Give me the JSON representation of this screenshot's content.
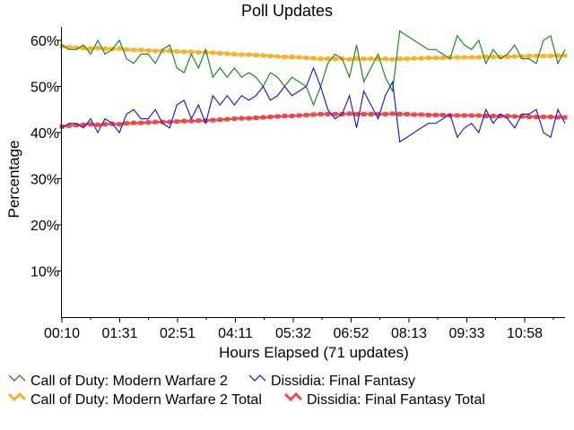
{
  "chart_data": {
    "type": "line",
    "title": "Poll Updates",
    "xlabel": "Hours Elapsed (71 updates)",
    "ylabel": "Percentage",
    "x_tick_labels": [
      "00:10",
      "01:31",
      "02:51",
      "04:11",
      "05:32",
      "06:52",
      "08:13",
      "09:33",
      "10:58"
    ],
    "y_ticks": [
      10,
      20,
      30,
      40,
      50,
      60
    ],
    "y_tick_labels": [
      "10%",
      "20%",
      "30%",
      "40%",
      "50%",
      "60%"
    ],
    "ylim": [
      0,
      63
    ],
    "num_updates": 71,
    "grid": false,
    "legend_position": "bottom",
    "series": [
      {
        "name": "Call of Duty: Modern Warfare 2",
        "color": "#1f8a1f",
        "marker": "none",
        "values": [
          59,
          58,
          58,
          59,
          57,
          60,
          57,
          58,
          60,
          56,
          55,
          57,
          57,
          55,
          58,
          59,
          54,
          53,
          57,
          54,
          58,
          52,
          54,
          52,
          54,
          52,
          53,
          52,
          50,
          53,
          52,
          50,
          52,
          51,
          50,
          46,
          50,
          55,
          57,
          56,
          52,
          59,
          51,
          54,
          57,
          52,
          49,
          62,
          61,
          60,
          59,
          58,
          58,
          57,
          56,
          61,
          59,
          58,
          60,
          55,
          58,
          56,
          57,
          59,
          56,
          56,
          55,
          60,
          61,
          55,
          58
        ]
      },
      {
        "name": "Dissidia: Final Fantasy",
        "color": "#2222cc",
        "marker": "none",
        "values": [
          41,
          42,
          42,
          41,
          43,
          40,
          43,
          42,
          40,
          44,
          45,
          43,
          43,
          45,
          42,
          41,
          46,
          47,
          43,
          46,
          42,
          48,
          46,
          48,
          46,
          48,
          47,
          48,
          50,
          47,
          48,
          50,
          48,
          49,
          50,
          54,
          50,
          45,
          43,
          44,
          48,
          41,
          49,
          46,
          43,
          48,
          51,
          38,
          39,
          40,
          41,
          42,
          42,
          43,
          44,
          39,
          41,
          42,
          40,
          45,
          42,
          44,
          43,
          41,
          44,
          44,
          45,
          40,
          39,
          45,
          42
        ]
      },
      {
        "name": "Call of Duty: Modern Warfare 2 Total",
        "color": "#f5b330",
        "marker": "square",
        "values": [
          58.7,
          58.5,
          58.4,
          58.3,
          58.2,
          58.3,
          58.2,
          58.1,
          58.2,
          58.0,
          57.9,
          57.9,
          57.8,
          57.7,
          57.7,
          57.7,
          57.6,
          57.5,
          57.5,
          57.4,
          57.4,
          57.3,
          57.2,
          57.1,
          57.0,
          56.9,
          56.9,
          56.8,
          56.7,
          56.6,
          56.5,
          56.4,
          56.4,
          56.3,
          56.2,
          56.1,
          56.0,
          56.0,
          56.0,
          56.0,
          55.9,
          56.0,
          56.0,
          56.0,
          56.0,
          56.0,
          55.9,
          56.0,
          56.0,
          56.1,
          56.1,
          56.2,
          56.2,
          56.2,
          56.3,
          56.3,
          56.3,
          56.3,
          56.3,
          56.4,
          56.4,
          56.4,
          56.4,
          56.5,
          56.5,
          56.6,
          56.6,
          56.6,
          56.6,
          56.7,
          56.7
        ]
      },
      {
        "name": "Dissidia: Final Fantasy Total",
        "color": "#f04848",
        "marker": "square",
        "values": [
          41.3,
          41.5,
          41.6,
          41.7,
          41.8,
          41.7,
          41.8,
          41.9,
          41.8,
          42.0,
          42.1,
          42.1,
          42.2,
          42.3,
          42.3,
          42.3,
          42.4,
          42.5,
          42.5,
          42.6,
          42.6,
          42.7,
          42.8,
          42.9,
          43.0,
          43.1,
          43.1,
          43.2,
          43.3,
          43.4,
          43.5,
          43.6,
          43.6,
          43.7,
          43.8,
          43.9,
          44.0,
          44.0,
          44.0,
          44.0,
          44.1,
          44.0,
          44.0,
          44.0,
          44.0,
          44.0,
          44.1,
          44.0,
          44.0,
          43.9,
          43.9,
          43.8,
          43.8,
          43.8,
          43.7,
          43.7,
          43.7,
          43.7,
          43.7,
          43.6,
          43.6,
          43.6,
          43.6,
          43.5,
          43.5,
          43.4,
          43.4,
          43.4,
          43.4,
          43.3,
          43.3
        ]
      }
    ]
  }
}
